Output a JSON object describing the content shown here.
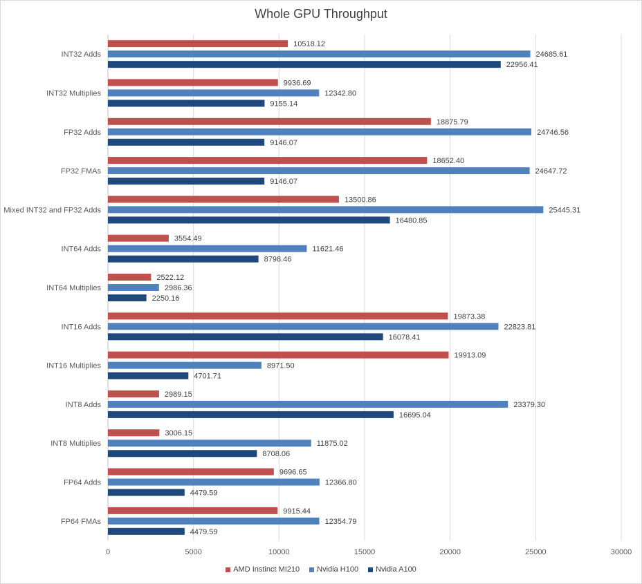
{
  "chart_data": {
    "type": "bar",
    "orientation": "horizontal",
    "title": "Whole GPU Throughput",
    "xlabel": "",
    "ylabel": "",
    "xlim": [
      0,
      30000
    ],
    "x_ticks": [
      "0",
      "5000",
      "10000",
      "15000",
      "20000",
      "25000",
      "30000"
    ],
    "grid": true,
    "legend_position": "bottom",
    "categories": [
      "INT32 Adds",
      "INT32 Multiplies",
      "FP32 Adds",
      "FP32 FMAs",
      "Mixed INT32 and FP32 Adds",
      "INT64 Adds",
      "INT64 Multiplies",
      "INT16 Adds",
      "INT16 Multiplies",
      "INT8 Adds",
      "INT8 Multiplies",
      "FP64 Adds",
      "FP64 FMAs"
    ],
    "series": [
      {
        "name": "AMD Instinct MI210",
        "color": "#c0504d",
        "values": [
          10518.12,
          9936.69,
          18875.79,
          18652.4,
          13500.86,
          3554.49,
          2522.12,
          19873.38,
          19913.09,
          2989.15,
          3006.15,
          9696.65,
          9915.44
        ],
        "labels": [
          "10518.12",
          "9936.69",
          "18875.79",
          "18652.40",
          "13500.86",
          "3554.49",
          "2522.12",
          "19873.38",
          "19913.09",
          "2989.15",
          "3006.15",
          "9696.65",
          "9915.44"
        ]
      },
      {
        "name": "Nvidia H100",
        "color": "#4f81bd",
        "values": [
          24685.61,
          12342.8,
          24746.56,
          24647.72,
          25445.31,
          11621.46,
          2986.36,
          22823.81,
          8971.5,
          23379.3,
          11875.02,
          12366.8,
          12354.79
        ],
        "labels": [
          "24685.61",
          "12342.80",
          "24746.56",
          "24647.72",
          "25445.31",
          "11621.46",
          "2986.36",
          "22823.81",
          "8971.50",
          "23379.30",
          "11875.02",
          "12366.80",
          "12354.79"
        ]
      },
      {
        "name": "Nvidia A100",
        "color": "#1f497d",
        "values": [
          22956.41,
          9155.14,
          9146.07,
          9146.07,
          16480.85,
          8798.46,
          2250.16,
          16078.41,
          4701.71,
          16695.04,
          8708.06,
          4479.59,
          4479.59
        ],
        "labels": [
          "22956.41",
          "9155.14",
          "9146.07",
          "9146.07",
          "16480.85",
          "8798.46",
          "2250.16",
          "16078.41",
          "4701.71",
          "16695.04",
          "8708.06",
          "4479.59",
          "4479.59"
        ]
      }
    ]
  }
}
